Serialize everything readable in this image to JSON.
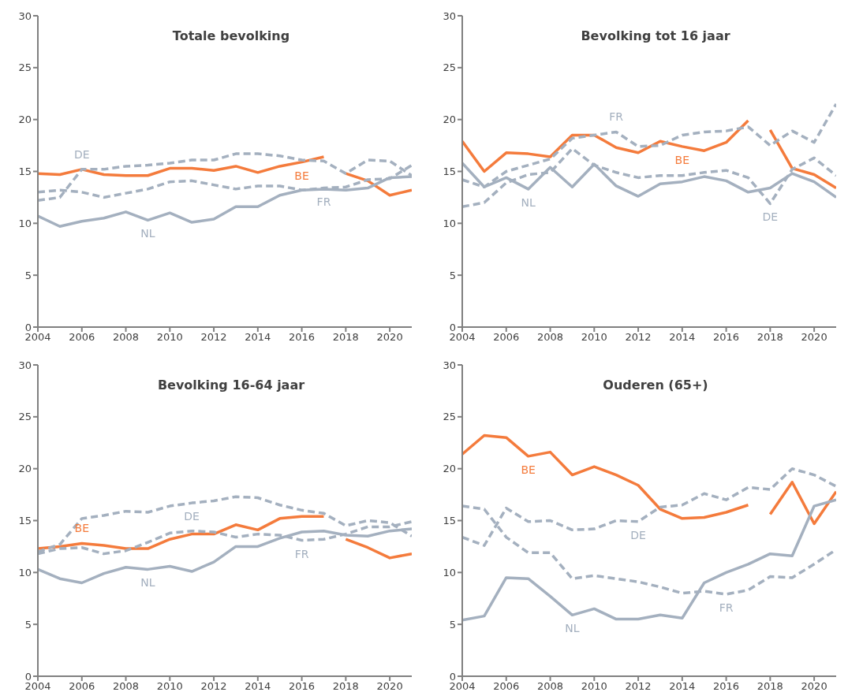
{
  "chart_data": [
    {
      "type": "line",
      "title": "Totale bevolking",
      "x": [
        2004,
        2005,
        2006,
        2007,
        2008,
        2009,
        2010,
        2011,
        2012,
        2013,
        2014,
        2015,
        2016,
        2017,
        2018,
        2019,
        2020,
        2021
      ],
      "xlim": [
        2004,
        2021
      ],
      "xticks": [
        2004,
        2006,
        2008,
        2010,
        2012,
        2014,
        2016,
        2018,
        2020
      ],
      "ylim": [
        0,
        30
      ],
      "yticks": [
        0,
        5,
        10,
        15,
        20,
        25,
        30
      ],
      "legend": false,
      "grid": false,
      "series": [
        {
          "name": "BE",
          "color": "#f47b3c",
          "line_style": "solid",
          "x": [
            2004,
            2005,
            2006,
            2007,
            2008,
            2009,
            2010,
            2011,
            2012,
            2013,
            2014,
            2015,
            2016,
            2017,
            2017.5,
            2018,
            2019,
            2020,
            2021
          ],
          "values": [
            14.8,
            14.7,
            15.2,
            14.7,
            14.6,
            14.6,
            15.3,
            15.3,
            15.1,
            15.5,
            14.9,
            15.5,
            15.9,
            16.4,
            null,
            14.8,
            14.1,
            12.7,
            13.2
          ]
        },
        {
          "name": "DE",
          "color": "#a4b0bf",
          "line_style": "dashed",
          "values": [
            12.2,
            12.5,
            15.2,
            15.2,
            15.5,
            15.6,
            15.8,
            16.1,
            16.1,
            16.7,
            16.7,
            16.5,
            16.1,
            16.0,
            14.8,
            16.1,
            16.0,
            14.6
          ]
        },
        {
          "name": "FR",
          "color": "#a4b0bf",
          "line_style": "dashed",
          "values": [
            13.0,
            13.2,
            13.0,
            12.5,
            12.9,
            13.3,
            14.0,
            14.1,
            13.7,
            13.3,
            13.6,
            13.6,
            13.2,
            13.4,
            13.5,
            14.2,
            14.3,
            15.6
          ]
        },
        {
          "name": "NL",
          "color": "#a4b0bf",
          "line_style": "solid",
          "values": [
            10.7,
            9.7,
            10.2,
            10.5,
            11.1,
            10.3,
            11.0,
            10.1,
            10.4,
            11.6,
            11.6,
            12.7,
            13.2,
            13.3,
            13.2,
            13.4,
            14.4,
            14.5
          ]
        }
      ]
    },
    {
      "type": "line",
      "title": "Bevolking tot 16 jaar",
      "x": [
        2004,
        2005,
        2006,
        2007,
        2008,
        2009,
        2010,
        2011,
        2012,
        2013,
        2014,
        2015,
        2016,
        2017,
        2018,
        2019,
        2020,
        2021
      ],
      "xlim": [
        2004,
        2021
      ],
      "xticks": [
        2004,
        2006,
        2008,
        2010,
        2012,
        2014,
        2016,
        2018,
        2020
      ],
      "ylim": [
        0,
        30
      ],
      "yticks": [
        0,
        5,
        10,
        15,
        20,
        25,
        30
      ],
      "legend": false,
      "grid": false,
      "series": [
        {
          "name": "BE",
          "color": "#f47b3c",
          "line_style": "solid",
          "x": [
            2004,
            2005,
            2006,
            2007,
            2008,
            2009,
            2010,
            2011,
            2012,
            2013,
            2014,
            2015,
            2016,
            2017,
            2017.5,
            2018,
            2019,
            2020,
            2021
          ],
          "values": [
            17.9,
            15.0,
            16.8,
            16.7,
            16.4,
            18.5,
            18.5,
            17.3,
            16.8,
            17.9,
            17.4,
            17.0,
            17.8,
            19.9,
            null,
            19.0,
            15.3,
            14.7,
            13.4
          ]
        },
        {
          "name": "DE",
          "color": "#a4b0bf",
          "line_style": "dashed",
          "values": [
            11.6,
            12.0,
            13.9,
            14.7,
            14.9,
            17.2,
            15.6,
            14.9,
            14.4,
            14.6,
            14.6,
            14.9,
            15.1,
            14.4,
            11.9,
            15.2,
            16.3,
            14.6
          ]
        },
        {
          "name": "FR",
          "color": "#a4b0bf",
          "line_style": "dashed",
          "values": [
            14.2,
            13.5,
            15.0,
            15.6,
            16.2,
            18.2,
            18.5,
            18.8,
            17.4,
            17.5,
            18.5,
            18.8,
            18.9,
            19.3,
            17.5,
            18.9,
            17.8,
            21.5
          ]
        },
        {
          "name": "NL",
          "color": "#a4b0bf",
          "line_style": "solid",
          "values": [
            15.8,
            13.5,
            14.4,
            13.3,
            15.4,
            13.5,
            15.7,
            13.6,
            12.6,
            13.8,
            14.0,
            14.5,
            14.1,
            13.0,
            13.4,
            14.8,
            14.0,
            12.5
          ]
        }
      ]
    },
    {
      "type": "line",
      "title": "Bevolking 16-64 jaar",
      "x": [
        2004,
        2005,
        2006,
        2007,
        2008,
        2009,
        2010,
        2011,
        2012,
        2013,
        2014,
        2015,
        2016,
        2017,
        2018,
        2019,
        2020,
        2021
      ],
      "xlim": [
        2004,
        2021
      ],
      "xticks": [
        2004,
        2006,
        2008,
        2010,
        2012,
        2014,
        2016,
        2018,
        2020
      ],
      "ylim": [
        0,
        30
      ],
      "yticks": [
        0,
        5,
        10,
        15,
        20,
        25,
        30
      ],
      "legend": false,
      "grid": false,
      "series": [
        {
          "name": "BE",
          "color": "#f47b3c",
          "line_style": "solid",
          "x": [
            2004,
            2005,
            2006,
            2007,
            2008,
            2009,
            2010,
            2011,
            2012,
            2013,
            2014,
            2015,
            2016,
            2017,
            2017.5,
            2018,
            2019,
            2020,
            2021
          ],
          "values": [
            12.3,
            12.5,
            12.8,
            12.6,
            12.3,
            12.3,
            13.2,
            13.7,
            13.7,
            14.6,
            14.1,
            15.2,
            15.4,
            15.4,
            null,
            13.2,
            12.4,
            11.4,
            11.8
          ]
        },
        {
          "name": "DE",
          "color": "#a4b0bf",
          "line_style": "dashed",
          "values": [
            12.0,
            12.7,
            15.2,
            15.5,
            15.9,
            15.8,
            16.4,
            16.7,
            16.9,
            17.3,
            17.2,
            16.5,
            16.0,
            15.7,
            14.5,
            15.0,
            14.8,
            13.5
          ]
        },
        {
          "name": "FR",
          "color": "#a4b0bf",
          "line_style": "dashed",
          "values": [
            11.8,
            12.3,
            12.4,
            11.8,
            12.1,
            12.9,
            13.8,
            14.0,
            13.9,
            13.4,
            13.7,
            13.6,
            13.1,
            13.2,
            13.7,
            14.4,
            14.4,
            14.9
          ]
        },
        {
          "name": "NL",
          "color": "#a4b0bf",
          "line_style": "solid",
          "values": [
            10.3,
            9.4,
            9.0,
            9.9,
            10.5,
            10.3,
            10.6,
            10.1,
            11.0,
            12.5,
            12.5,
            13.3,
            13.9,
            14.0,
            13.6,
            13.5,
            14.0,
            14.2
          ]
        }
      ]
    },
    {
      "type": "line",
      "title": "Ouderen (65+)",
      "x": [
        2004,
        2005,
        2006,
        2007,
        2008,
        2009,
        2010,
        2011,
        2012,
        2013,
        2014,
        2015,
        2016,
        2017,
        2018,
        2019,
        2020,
        2021
      ],
      "xlim": [
        2004,
        2021
      ],
      "xticks": [
        2004,
        2006,
        2008,
        2010,
        2012,
        2014,
        2016,
        2018,
        2020
      ],
      "ylim": [
        0,
        30
      ],
      "yticks": [
        0,
        5,
        10,
        15,
        20,
        25,
        30
      ],
      "legend": false,
      "grid": false,
      "series": [
        {
          "name": "BE",
          "color": "#f47b3c",
          "line_style": "solid",
          "x": [
            2004,
            2005,
            2006,
            2007,
            2008,
            2009,
            2010,
            2011,
            2012,
            2013,
            2014,
            2015,
            2016,
            2017,
            2017.5,
            2018,
            2019,
            2020,
            2021
          ],
          "values": [
            21.4,
            23.2,
            23.0,
            21.2,
            21.6,
            19.4,
            20.2,
            19.4,
            18.4,
            16.1,
            15.2,
            15.3,
            15.8,
            16.5,
            null,
            15.6,
            18.7,
            14.7,
            17.8
          ]
        },
        {
          "name": "DE",
          "color": "#a4b0bf",
          "line_style": "dashed",
          "values": [
            13.4,
            12.6,
            16.2,
            14.9,
            15.0,
            14.1,
            14.2,
            15.0,
            14.9,
            16.3,
            16.5,
            17.6,
            17.0,
            18.2,
            18.0,
            20.0,
            19.4,
            18.3
          ]
        },
        {
          "name": "FR",
          "color": "#a4b0bf",
          "line_style": "dashed",
          "values": [
            16.4,
            16.1,
            13.4,
            11.9,
            11.9,
            9.4,
            9.7,
            9.4,
            9.1,
            8.6,
            8.0,
            8.2,
            7.9,
            8.3,
            9.6,
            9.5,
            10.8,
            12.2
          ]
        },
        {
          "name": "NL",
          "color": "#a4b0bf",
          "line_style": "solid",
          "values": [
            5.4,
            5.8,
            9.5,
            9.4,
            7.7,
            5.9,
            6.5,
            5.5,
            5.5,
            5.9,
            5.6,
            9.0,
            10.0,
            10.8,
            11.8,
            11.6,
            16.4,
            17.0
          ]
        }
      ]
    }
  ]
}
